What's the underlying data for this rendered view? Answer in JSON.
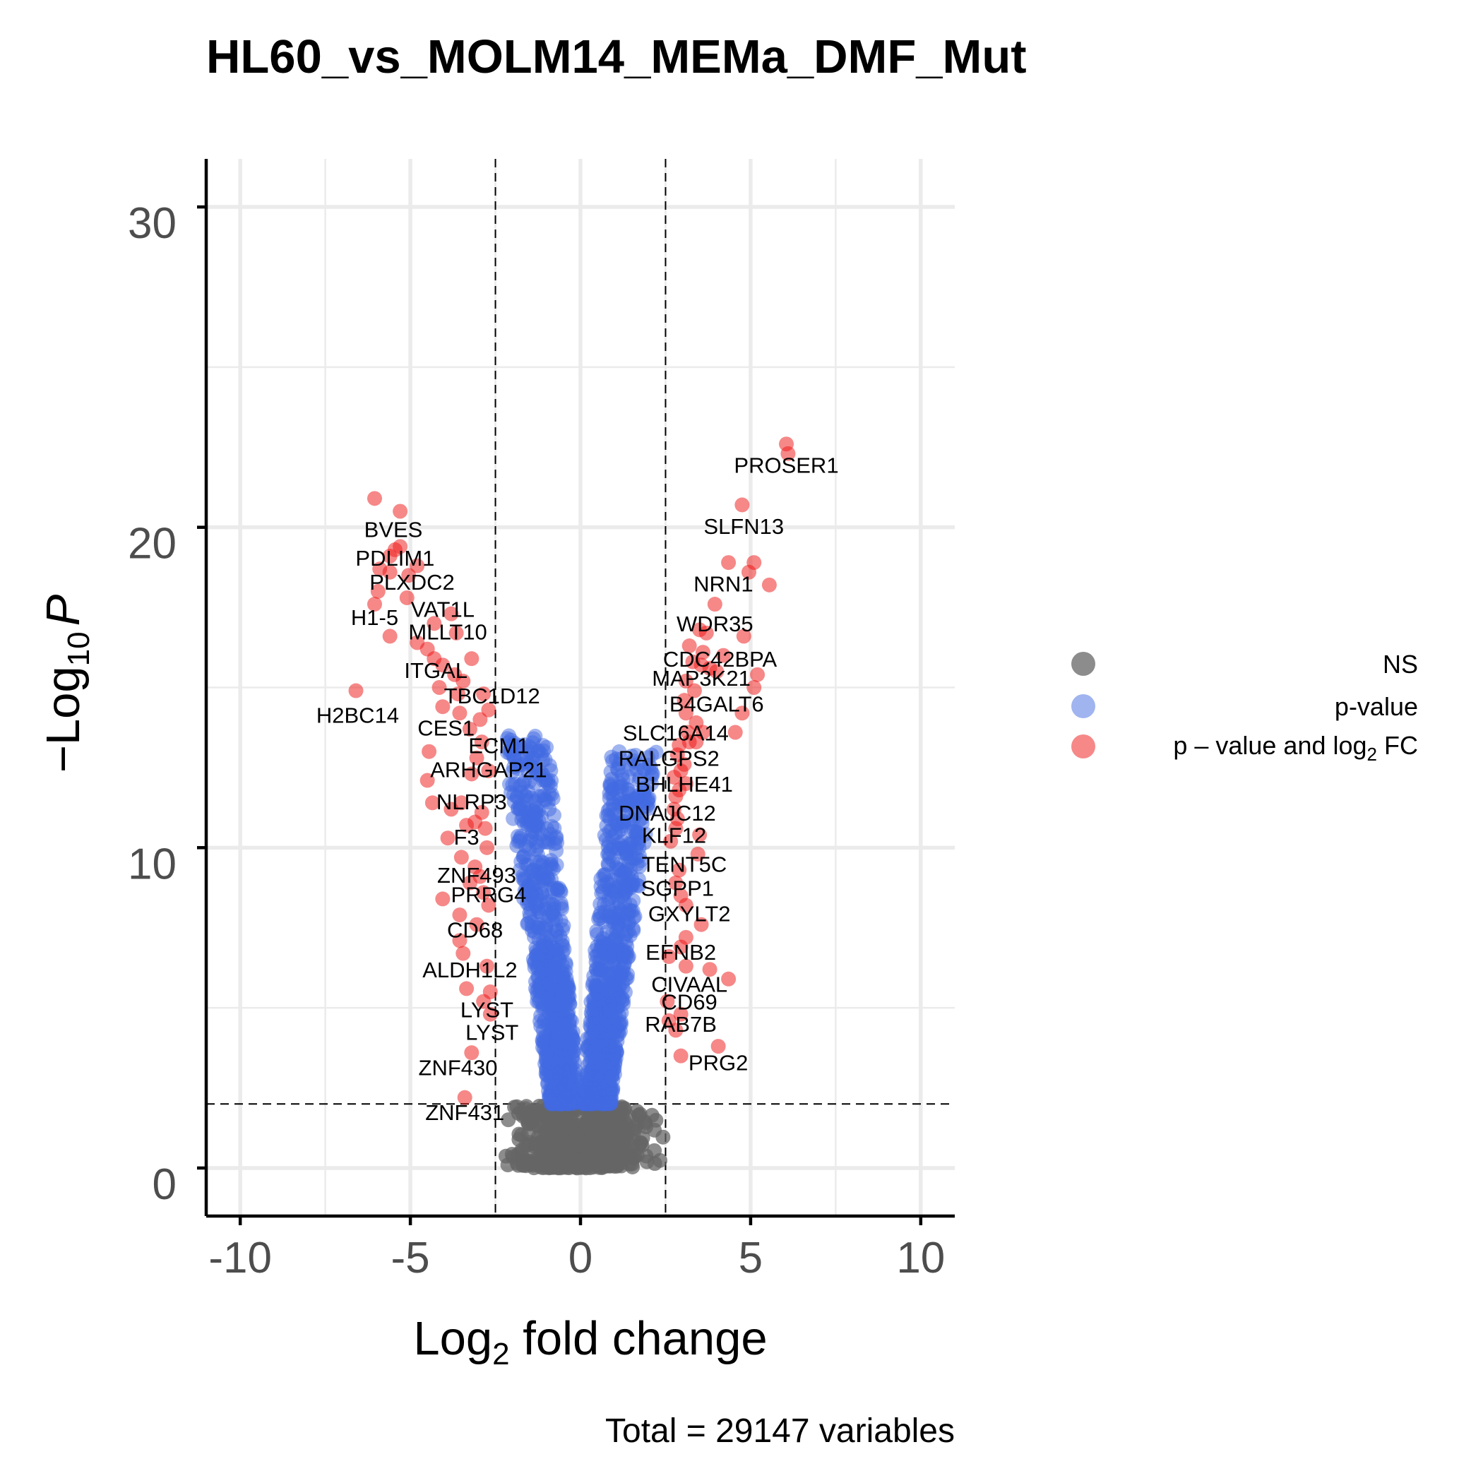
{
  "chart_data": {
    "type": "scatter",
    "title": "HL60_vs_MOLM14_MEMa_DMF_Mut",
    "xlabel": "Log2 fold change",
    "xlabel_main": "Log",
    "xlabel_sub": "2",
    "xlabel_rest": " fold change",
    "ylabel": "-Log10 P",
    "ylabel_main": "−Log",
    "ylabel_sub": "10",
    "ylabel_p": "P",
    "xlim": [
      -11,
      11
    ],
    "ylim": [
      -1.5,
      31.5
    ],
    "x_ticks": [
      -10,
      -5,
      0,
      5,
      10
    ],
    "x_tick_labels": [
      "-10",
      "-5",
      "0",
      "5",
      "10"
    ],
    "y_ticks": [
      0,
      10,
      20,
      30
    ],
    "y_tick_labels": [
      "0",
      "10",
      "20",
      "30"
    ],
    "fc_cutoff": 2.5,
    "p_cutoff_log": 2,
    "caption": "Total = 29147 variables",
    "colors": {
      "NS": "#666666",
      "pvalue": "#4169E1",
      "both": "#EE1111"
    },
    "legend": {
      "position": "right",
      "entries": [
        {
          "key": "NS",
          "label": "NS",
          "color": "#666666"
        },
        {
          "key": "pvalue",
          "label": "p-value",
          "color": "#4169E1"
        },
        {
          "key": "both",
          "label_main": "p – value and log",
          "label_sub": "2",
          "label_rest": " FC",
          "color": "#EE1111"
        }
      ]
    },
    "significant_points": [
      [
        6.05,
        22.6
      ],
      [
        6.1,
        22.3
      ],
      [
        4.75,
        20.7
      ],
      [
        4.35,
        18.9
      ],
      [
        5.1,
        18.9
      ],
      [
        4.95,
        18.6
      ],
      [
        5.55,
        18.2
      ],
      [
        3.95,
        17.6
      ],
      [
        3.5,
        16.8
      ],
      [
        3.7,
        16.7
      ],
      [
        4.8,
        16.6
      ],
      [
        3.2,
        16.3
      ],
      [
        3.6,
        16.1
      ],
      [
        4.2,
        16.0
      ],
      [
        3.3,
        15.8
      ],
      [
        3.55,
        15.7
      ],
      [
        3.8,
        15.6
      ],
      [
        4.0,
        15.5
      ],
      [
        5.2,
        15.4
      ],
      [
        5.1,
        15.0
      ],
      [
        3.1,
        15.2
      ],
      [
        3.35,
        14.9
      ],
      [
        3.1,
        14.2
      ],
      [
        3.05,
        14.6
      ],
      [
        4.75,
        14.2
      ],
      [
        3.4,
        13.9
      ],
      [
        4.55,
        13.6
      ],
      [
        3.15,
        13.6
      ],
      [
        3.6,
        13.6
      ],
      [
        3.2,
        13.3
      ],
      [
        2.9,
        13.2
      ],
      [
        3.4,
        13.3
      ],
      [
        2.85,
        12.9
      ],
      [
        3.05,
        12.6
      ],
      [
        2.95,
        12.4
      ],
      [
        2.75,
        12.2
      ],
      [
        3.1,
        12.0
      ],
      [
        2.9,
        11.8
      ],
      [
        2.8,
        11.6
      ],
      [
        2.75,
        11.2
      ],
      [
        2.85,
        10.9
      ],
      [
        2.8,
        10.6
      ],
      [
        3.5,
        10.4
      ],
      [
        2.65,
        10.2
      ],
      [
        3.45,
        9.8
      ],
      [
        2.9,
        9.3
      ],
      [
        2.8,
        8.9
      ],
      [
        2.95,
        8.5
      ],
      [
        3.1,
        8.2
      ],
      [
        3.55,
        7.6
      ],
      [
        3.1,
        7.2
      ],
      [
        2.95,
        6.9
      ],
      [
        2.6,
        6.6
      ],
      [
        3.1,
        6.3
      ],
      [
        3.8,
        6.2
      ],
      [
        4.35,
        5.9
      ],
      [
        2.55,
        5.2
      ],
      [
        2.95,
        4.8
      ],
      [
        2.6,
        4.6
      ],
      [
        2.8,
        4.3
      ],
      [
        4.05,
        3.8
      ],
      [
        2.95,
        3.5
      ],
      [
        -6.05,
        20.9
      ],
      [
        -5.3,
        20.5
      ],
      [
        -5.3,
        19.4
      ],
      [
        -5.45,
        19.3
      ],
      [
        -5.6,
        19.1
      ],
      [
        -5.9,
        18.7
      ],
      [
        -5.6,
        18.6
      ],
      [
        -4.8,
        18.8
      ],
      [
        -5.05,
        18.5
      ],
      [
        -5.95,
        18.0
      ],
      [
        -6.05,
        17.6
      ],
      [
        -5.1,
        17.8
      ],
      [
        -3.8,
        17.3
      ],
      [
        -4.3,
        17.0
      ],
      [
        -5.6,
        16.6
      ],
      [
        -3.65,
        16.7
      ],
      [
        -4.8,
        16.4
      ],
      [
        -4.5,
        16.2
      ],
      [
        -4.3,
        15.9
      ],
      [
        -3.2,
        15.9
      ],
      [
        -4.05,
        15.7
      ],
      [
        -3.7,
        15.4
      ],
      [
        -3.45,
        15.2
      ],
      [
        -4.15,
        15.0
      ],
      [
        -3.6,
        14.8
      ],
      [
        -2.85,
        14.8
      ],
      [
        -4.05,
        14.4
      ],
      [
        -3.55,
        14.2
      ],
      [
        -2.95,
        14.0
      ],
      [
        -2.7,
        14.3
      ],
      [
        -3.25,
        13.7
      ],
      [
        -6.6,
        14.9
      ],
      [
        -2.9,
        13.3
      ],
      [
        -4.45,
        13.0
      ],
      [
        -3.05,
        12.8
      ],
      [
        -4.5,
        12.1
      ],
      [
        -3.2,
        12.3
      ],
      [
        -2.7,
        12.4
      ],
      [
        -4.35,
        11.4
      ],
      [
        -3.8,
        11.2
      ],
      [
        -3.5,
        11.4
      ],
      [
        -2.9,
        11.1
      ],
      [
        -3.1,
        10.8
      ],
      [
        -3.35,
        10.7
      ],
      [
        -2.8,
        10.6
      ],
      [
        -3.9,
        10.3
      ],
      [
        -2.75,
        10.0
      ],
      [
        -3.5,
        9.7
      ],
      [
        -3.1,
        9.4
      ],
      [
        -2.95,
        9.1
      ],
      [
        -3.25,
        8.9
      ],
      [
        -2.85,
        8.6
      ],
      [
        -4.05,
        8.4
      ],
      [
        -2.7,
        8.2
      ],
      [
        -3.55,
        7.9
      ],
      [
        -3.05,
        7.6
      ],
      [
        -3.55,
        7.1
      ],
      [
        -3.45,
        6.7
      ],
      [
        -2.75,
        6.3
      ],
      [
        -3.35,
        5.6
      ],
      [
        -2.65,
        5.5
      ],
      [
        -2.85,
        5.2
      ],
      [
        -2.65,
        4.8
      ],
      [
        -3.2,
        3.6
      ],
      [
        -3.4,
        2.2
      ]
    ],
    "gene_labels": [
      {
        "text": "PROSER1",
        "x": 6.05,
        "y": 21.7
      },
      {
        "text": "SLFN13",
        "x": 4.8,
        "y": 19.8
      },
      {
        "text": "NRN1",
        "x": 4.2,
        "y": 18.0
      },
      {
        "text": "WDR35",
        "x": 3.95,
        "y": 16.75
      },
      {
        "text": "CDC42BPA",
        "x": 4.1,
        "y": 15.65
      },
      {
        "text": "MAP3K21",
        "x": 3.55,
        "y": 15.05
      },
      {
        "text": "B4GALT6",
        "x": 4.0,
        "y": 14.25
      },
      {
        "text": "SLC16A14",
        "x": 2.8,
        "y": 13.35
      },
      {
        "text": "RALGPS2",
        "x": 2.6,
        "y": 12.55
      },
      {
        "text": "BHLHE41",
        "x": 3.05,
        "y": 11.75
      },
      {
        "text": "DNAJC12",
        "x": 2.55,
        "y": 10.85
      },
      {
        "text": "KLF12",
        "x": 2.75,
        "y": 10.15
      },
      {
        "text": "TENT5C",
        "x": 3.05,
        "y": 9.25
      },
      {
        "text": "SGPP1",
        "x": 2.85,
        "y": 8.5
      },
      {
        "text": "GXYLT2",
        "x": 3.2,
        "y": 7.7
      },
      {
        "text": "EFNB2",
        "x": 2.95,
        "y": 6.5
      },
      {
        "text": "CIVAAL",
        "x": 3.2,
        "y": 5.5
      },
      {
        "text": "CD69",
        "x": 3.2,
        "y": 4.95
      },
      {
        "text": "RAB7B",
        "x": 2.95,
        "y": 4.25
      },
      {
        "text": "PRG2",
        "x": 4.05,
        "y": 3.05
      },
      {
        "text": "BVES",
        "x": -5.5,
        "y": 19.7
      },
      {
        "text": "PDLIM1",
        "x": -5.45,
        "y": 18.8
      },
      {
        "text": "PLXDC2",
        "x": -4.95,
        "y": 18.05
      },
      {
        "text": "VAT1L",
        "x": -4.05,
        "y": 17.2
      },
      {
        "text": "H1-5",
        "x": -6.05,
        "y": 16.95
      },
      {
        "text": "MLLT10",
        "x": -3.9,
        "y": 16.5
      },
      {
        "text": "ITGAL",
        "x": -4.25,
        "y": 15.3
      },
      {
        "text": "TBC1D12",
        "x": -2.6,
        "y": 14.5
      },
      {
        "text": "H2BC14",
        "x": -6.55,
        "y": 13.9
      },
      {
        "text": "CES1",
        "x": -3.95,
        "y": 13.5
      },
      {
        "text": "ECM1",
        "x": -2.4,
        "y": 12.95
      },
      {
        "text": "ARHGAP21",
        "x": -2.7,
        "y": 12.2
      },
      {
        "text": "NLRP3",
        "x": -3.2,
        "y": 11.2
      },
      {
        "text": "F3",
        "x": -3.35,
        "y": 10.1
      },
      {
        "text": "ZNF493",
        "x": -3.05,
        "y": 8.9
      },
      {
        "text": "PRRG4",
        "x": -2.7,
        "y": 8.3
      },
      {
        "text": "CD68",
        "x": -3.1,
        "y": 7.2
      },
      {
        "text": "ALDH1L2",
        "x": -3.25,
        "y": 5.95
      },
      {
        "text": "LYST",
        "x": -2.75,
        "y": 4.7
      },
      {
        "text": "LYST",
        "x": -2.6,
        "y": 4.0
      },
      {
        "text": "ZNF430",
        "x": -3.6,
        "y": 2.9
      },
      {
        "text": "ZNF431",
        "x": -3.4,
        "y": 1.5
      }
    ]
  }
}
